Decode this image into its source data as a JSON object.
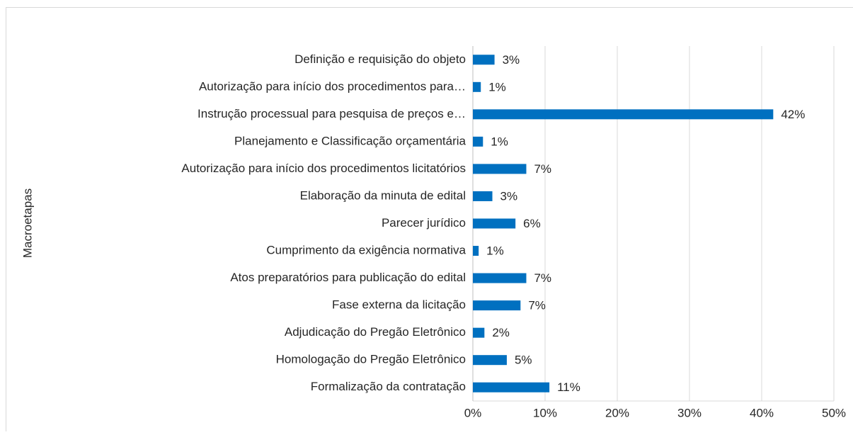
{
  "chart_data": {
    "type": "bar",
    "orientation": "horizontal",
    "y_label": "Macroetapas",
    "categories": [
      "Definição e requisição do objeto",
      "Autorização para início dos procedimentos para…",
      "Instrução processual para pesquisa de preços e…",
      "Planejamento e Classificação orçamentária",
      "Autorização para início dos procedimentos licitatórios",
      "Elaboração da minuta de edital",
      "Parecer jurídico",
      "Cumprimento da exigência normativa",
      "Atos preparatórios para publicação do edital",
      "Fase externa da licitação",
      "Adjudicação do Pregão Eletrônico",
      "Homologação do Pregão Eletrônico",
      "Formalização da contratação"
    ],
    "values": [
      3.0,
      1.1,
      41.6,
      1.4,
      7.4,
      2.7,
      5.9,
      0.8,
      7.4,
      6.6,
      1.6,
      4.7,
      10.6
    ],
    "value_labels": [
      "3%",
      "1%",
      "42%",
      "1%",
      "7%",
      "3%",
      "6%",
      "1%",
      "7%",
      "7%",
      "2%",
      "5%",
      "11%"
    ],
    "color": "#0070c0",
    "xlim": [
      0,
      50
    ],
    "xticks": [
      {
        "value": 0,
        "label": "0%"
      },
      {
        "value": 10,
        "label": "10%"
      },
      {
        "value": 20,
        "label": "20%"
      },
      {
        "value": 30,
        "label": "30%"
      },
      {
        "value": 40,
        "label": "40%"
      },
      {
        "value": 50,
        "label": "50%"
      }
    ],
    "grid": true
  }
}
